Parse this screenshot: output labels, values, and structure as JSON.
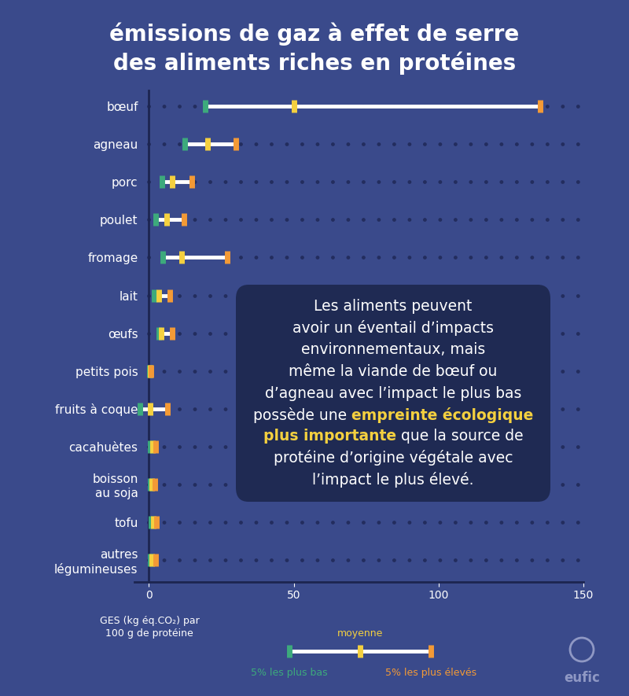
{
  "chart_data": {
    "type": "range",
    "orientation": "horizontal",
    "title": "émissions de gaz à effet de serre\ndes aliments riches en protéines",
    "x_label": "GES (kg éq.CO₂) par\n100 g de protéine",
    "categories": [
      "bœuf",
      "agneau",
      "porc",
      "poulet",
      "fromage",
      "lait",
      "œufs",
      "petits pois",
      "fruits à coque",
      "cacahuètes",
      "boisson\nau soja",
      "tofu",
      "autres\nlégumineuses"
    ],
    "series": [
      {
        "name": "5% les plus bas",
        "color": "#3daa7c",
        "values": [
          19.5,
          12.5,
          4.6,
          2.4,
          4.9,
          1.9,
          3.3,
          0.2,
          -3,
          0.5,
          0.4,
          0.6,
          0.4
        ]
      },
      {
        "name": "moyenne",
        "color": "#f4d03f",
        "values": [
          50,
          20.3,
          7.9,
          6.0,
          11.4,
          3.5,
          4.3,
          0.4,
          0.3,
          1.2,
          1.0,
          1.5,
          1.0
        ]
      },
      {
        "name": "5% les plus élevés",
        "color": "#f39a36",
        "values": [
          135,
          30,
          14.9,
          12.2,
          27.1,
          7.1,
          7.9,
          0.8,
          6.5,
          2.4,
          2.0,
          2.7,
          2.2
        ]
      }
    ],
    "xlim": [
      -5,
      150
    ],
    "xticks": [
      0,
      50,
      100,
      150
    ],
    "grid": false,
    "annotation": [
      [
        {
          "text": "Les aliments peuvent",
          "highlight": false
        }
      ],
      [
        {
          "text": "avoir un éventail d’impacts",
          "highlight": false
        }
      ],
      [
        {
          "text": "environnementaux, mais",
          "highlight": false
        }
      ],
      [
        {
          "text": "même la viande de bœuf ou",
          "highlight": false
        }
      ],
      [
        {
          "text": "d’agneau avec l’impact le plus bas",
          "highlight": false
        }
      ],
      [
        {
          "text": "possède une ",
          "highlight": false
        },
        {
          "text": "empreinte écologique",
          "highlight": true
        }
      ],
      [
        {
          "text": "plus importante",
          "highlight": true
        },
        {
          "text": " que la source de",
          "highlight": false
        }
      ],
      [
        {
          "text": "protéine d’origine végétale avec",
          "highlight": false
        }
      ],
      [
        {
          "text": "l’impact le plus élevé.",
          "highlight": false
        }
      ]
    ],
    "logo": "eufic"
  }
}
